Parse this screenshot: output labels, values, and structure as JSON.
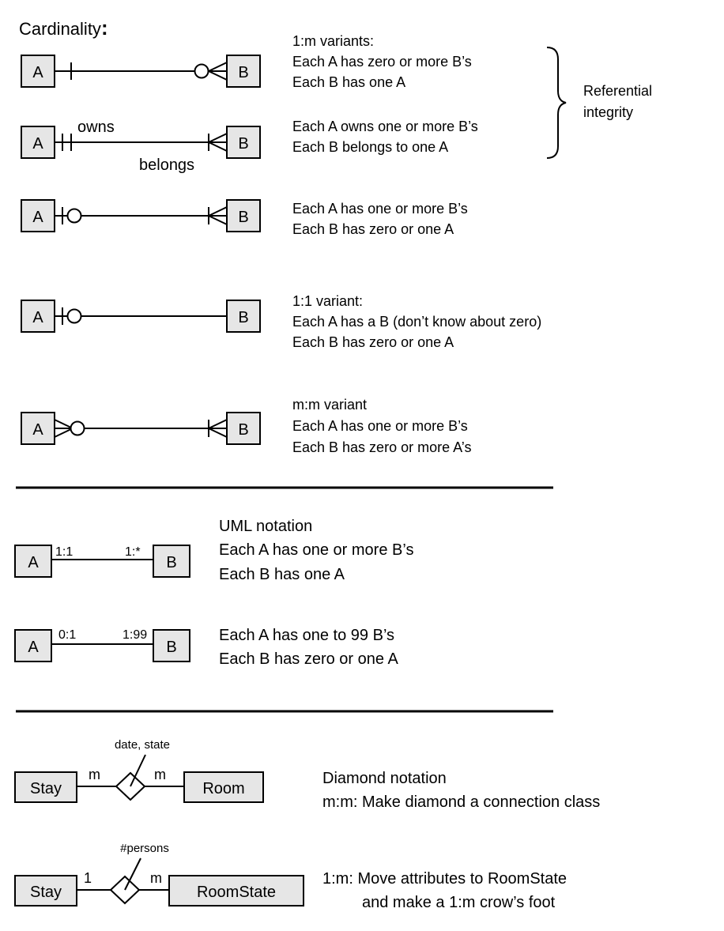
{
  "title": "Cardinality",
  "title_colon": ":",
  "entity_a": "A",
  "entity_b": "B",
  "er": {
    "block1": {
      "heading": "1:m variants:",
      "line1": "Each A has zero or more B’s",
      "line2": "Each B has one A"
    },
    "block2": {
      "label_owns": "owns",
      "label_belongs": "belongs",
      "line1": "Each A owns one or more B’s",
      "line2": "Each B belongs to one A"
    },
    "referential": {
      "line1": "Referential",
      "line2": "integrity"
    },
    "block3": {
      "line1": "Each A has one or more B’s",
      "line2": "Each B has zero or one A"
    },
    "block4": {
      "heading": "1:1 variant:",
      "line1": "Each A has a B (don’t know about zero)",
      "line2": "Each B has zero or one A"
    },
    "block5": {
      "heading": "m:m variant",
      "line1": "Each A has one or more B’s",
      "line2": "Each B has zero or more A’s"
    }
  },
  "uml": {
    "block1": {
      "left_mult": "1:1",
      "right_mult": "1:*",
      "heading": "UML notation",
      "line1": "Each A has one or more B’s",
      "line2": "Each B has one A"
    },
    "block2": {
      "left_mult": "0:1",
      "right_mult": "1:99",
      "line1": "Each A has one to 99 B’s",
      "line2": "Each B has zero or one A"
    }
  },
  "diamond": {
    "block1": {
      "left_entity": "Stay",
      "right_entity": "Room",
      "attr": "date, state",
      "left_mult": "m",
      "right_mult": "m",
      "line1": "Diamond notation",
      "line2": "m:m: Make diamond a connection class"
    },
    "block2": {
      "left_entity": "Stay",
      "right_entity": "RoomState",
      "attr": "#persons",
      "left_mult": "1",
      "right_mult": "m",
      "line1": "1:m: Move attributes to RoomState",
      "line2": "and make a 1:m crow’s foot"
    }
  }
}
